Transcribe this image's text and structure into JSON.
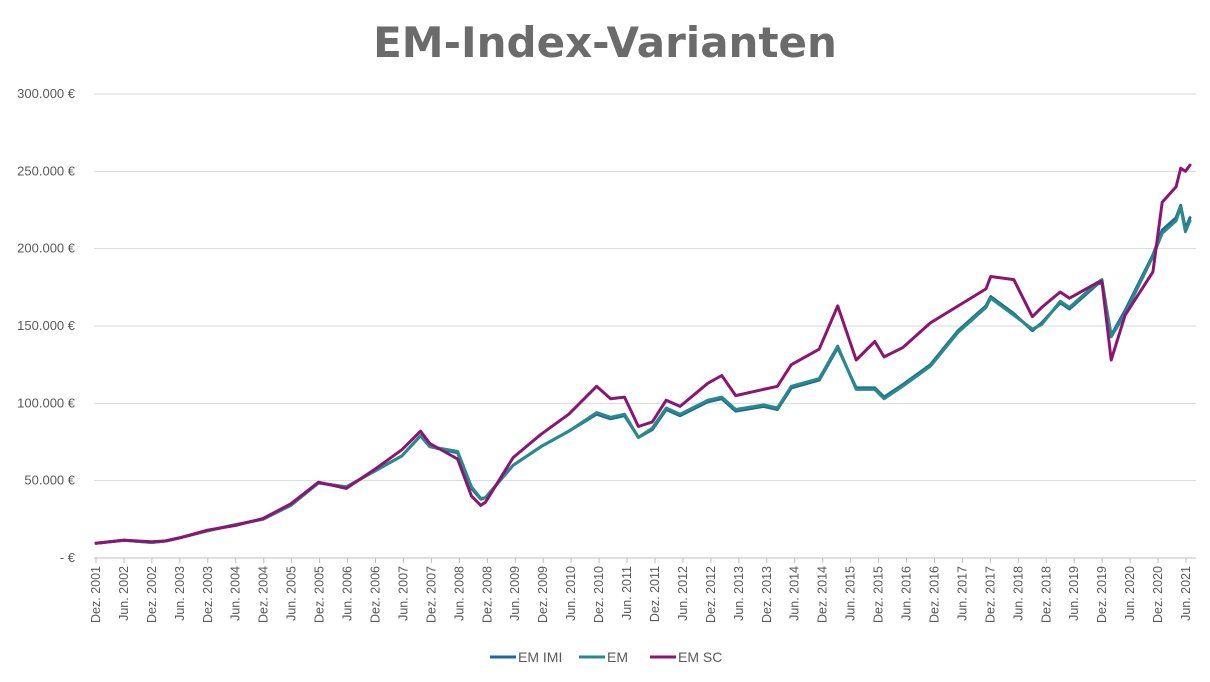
{
  "chart_data": {
    "type": "line",
    "title": "EM-Index-Varianten",
    "xlabel": "",
    "ylabel": "",
    "ylim": [
      0,
      300000
    ],
    "y_ticks": [
      0,
      50000,
      100000,
      150000,
      200000,
      250000,
      300000
    ],
    "y_tick_labels": [
      "- €",
      "50.000 €",
      "100.000 €",
      "150.000 €",
      "200.000 €",
      "250.000 €",
      "300.000 €"
    ],
    "x_tick_labels": [
      "Dez. 2001",
      "Jun. 2002",
      "Dez. 2002",
      "Jun. 2003",
      "Dez. 2003",
      "Jun. 2004",
      "Dez. 2004",
      "Jun. 2005",
      "Dez. 2005",
      "Jun. 2006",
      "Dez. 2006",
      "Jun. 2007",
      "Dez. 2007",
      "Jun. 2008",
      "Dez. 2008",
      "Jun. 2009",
      "Dez. 2009",
      "Jun. 2010",
      "Dez. 2010",
      "Jun. 2011",
      "Dez. 2011",
      "Jun. 2012",
      "Dez. 2012",
      "Jun. 2013",
      "Dez. 2013",
      "Jun. 2014",
      "Dez. 2014",
      "Jun. 2015",
      "Dez. 2015",
      "Jun. 2016",
      "Dez. 2016",
      "Jun. 2017",
      "Dez. 2017",
      "Jun. 2018",
      "Dez. 2018",
      "Jun. 2019",
      "Dez. 2019",
      "Jun. 2020",
      "Dez. 2020",
      "Jun. 2021"
    ],
    "x_start": "2001-12",
    "x_end": "2021-08",
    "grid": true,
    "legend_position": "bottom",
    "series": [
      {
        "name": "EM IMI",
        "color": "#1a6b9a",
        "points": [
          [
            "2001-12",
            9500
          ],
          [
            "2002-06",
            11500
          ],
          [
            "2002-12",
            10000
          ],
          [
            "2003-03",
            11000
          ],
          [
            "2003-06",
            13000
          ],
          [
            "2003-12",
            17500
          ],
          [
            "2004-06",
            21500
          ],
          [
            "2004-12",
            25000
          ],
          [
            "2005-06",
            34000
          ],
          [
            "2005-12",
            48500
          ],
          [
            "2006-06",
            46000
          ],
          [
            "2006-12",
            56000
          ],
          [
            "2007-06",
            66000
          ],
          [
            "2007-10",
            79000
          ],
          [
            "2007-12",
            72000
          ],
          [
            "2008-06",
            68000
          ],
          [
            "2008-09",
            45000
          ],
          [
            "2008-11",
            38000
          ],
          [
            "2008-12",
            39000
          ],
          [
            "2009-06",
            60000
          ],
          [
            "2009-12",
            72000
          ],
          [
            "2010-06",
            82000
          ],
          [
            "2010-12",
            93000
          ],
          [
            "2011-03",
            90000
          ],
          [
            "2011-06",
            92000
          ],
          [
            "2011-09",
            78000
          ],
          [
            "2011-12",
            83000
          ],
          [
            "2012-03",
            96000
          ],
          [
            "2012-06",
            92000
          ],
          [
            "2012-12",
            101000
          ],
          [
            "2013-03",
            103000
          ],
          [
            "2013-06",
            95000
          ],
          [
            "2013-12",
            98000
          ],
          [
            "2014-03",
            96000
          ],
          [
            "2014-06",
            110000
          ],
          [
            "2014-12",
            115000
          ],
          [
            "2015-04",
            136000
          ],
          [
            "2015-08",
            110000
          ],
          [
            "2015-12",
            110000
          ],
          [
            "2016-02",
            104000
          ],
          [
            "2016-06",
            112000
          ],
          [
            "2016-12",
            125000
          ],
          [
            "2017-06",
            147000
          ],
          [
            "2017-12",
            163000
          ],
          [
            "2018-01",
            169000
          ],
          [
            "2018-06",
            158000
          ],
          [
            "2018-10",
            147000
          ],
          [
            "2018-12",
            152000
          ],
          [
            "2019-04",
            165000
          ],
          [
            "2019-06",
            161000
          ],
          [
            "2019-12",
            177000
          ],
          [
            "2020-01",
            178000
          ],
          [
            "2020-03",
            144000
          ],
          [
            "2020-06",
            160000
          ],
          [
            "2020-12",
            196000
          ],
          [
            "2021-02",
            212000
          ],
          [
            "2021-05",
            220000
          ],
          [
            "2021-06",
            228000
          ],
          [
            "2021-07",
            213000
          ],
          [
            "2021-08",
            220000
          ]
        ]
      },
      {
        "name": "EM",
        "color": "#2a8a8a",
        "points": [
          [
            "2001-12",
            9500
          ],
          [
            "2002-06",
            11500
          ],
          [
            "2002-12",
            10000
          ],
          [
            "2003-03",
            11000
          ],
          [
            "2003-06",
            13000
          ],
          [
            "2003-12",
            17500
          ],
          [
            "2004-06",
            21500
          ],
          [
            "2004-12",
            25000
          ],
          [
            "2005-06",
            34000
          ],
          [
            "2005-12",
            48500
          ],
          [
            "2006-06",
            46000
          ],
          [
            "2006-12",
            56000
          ],
          [
            "2007-06",
            66000
          ],
          [
            "2007-10",
            79000
          ],
          [
            "2007-12",
            72000
          ],
          [
            "2008-06",
            69000
          ],
          [
            "2008-09",
            46000
          ],
          [
            "2008-11",
            38500
          ],
          [
            "2008-12",
            39000
          ],
          [
            "2009-06",
            60000
          ],
          [
            "2009-12",
            72000
          ],
          [
            "2010-06",
            82000
          ],
          [
            "2010-12",
            94000
          ],
          [
            "2011-03",
            91000
          ],
          [
            "2011-06",
            93000
          ],
          [
            "2011-09",
            78000
          ],
          [
            "2011-12",
            84000
          ],
          [
            "2012-03",
            97000
          ],
          [
            "2012-06",
            93000
          ],
          [
            "2012-12",
            102000
          ],
          [
            "2013-03",
            104000
          ],
          [
            "2013-06",
            96000
          ],
          [
            "2013-12",
            99000
          ],
          [
            "2014-03",
            97000
          ],
          [
            "2014-06",
            111000
          ],
          [
            "2014-12",
            116000
          ],
          [
            "2015-04",
            137000
          ],
          [
            "2015-08",
            109000
          ],
          [
            "2015-12",
            109000
          ],
          [
            "2016-02",
            103000
          ],
          [
            "2016-06",
            111000
          ],
          [
            "2016-12",
            124000
          ],
          [
            "2017-06",
            146000
          ],
          [
            "2017-12",
            162000
          ],
          [
            "2018-01",
            168000
          ],
          [
            "2018-06",
            157000
          ],
          [
            "2018-10",
            148000
          ],
          [
            "2018-12",
            151000
          ],
          [
            "2019-04",
            166000
          ],
          [
            "2019-06",
            162000
          ],
          [
            "2019-12",
            178000
          ],
          [
            "2020-01",
            180000
          ],
          [
            "2020-03",
            143000
          ],
          [
            "2020-06",
            158000
          ],
          [
            "2020-12",
            195000
          ],
          [
            "2021-02",
            210000
          ],
          [
            "2021-05",
            218000
          ],
          [
            "2021-06",
            227000
          ],
          [
            "2021-07",
            211000
          ],
          [
            "2021-08",
            218000
          ]
        ]
      },
      {
        "name": "EM SC",
        "color": "#8b1570",
        "points": [
          [
            "2001-12",
            9500
          ],
          [
            "2002-06",
            11500
          ],
          [
            "2002-12",
            10500
          ],
          [
            "2003-03",
            11000
          ],
          [
            "2003-06",
            13000
          ],
          [
            "2003-12",
            18000
          ],
          [
            "2004-06",
            21000
          ],
          [
            "2004-12",
            25500
          ],
          [
            "2005-06",
            35000
          ],
          [
            "2005-12",
            49000
          ],
          [
            "2006-06",
            45000
          ],
          [
            "2006-12",
            57000
          ],
          [
            "2007-06",
            70000
          ],
          [
            "2007-10",
            82000
          ],
          [
            "2007-12",
            74000
          ],
          [
            "2008-06",
            64000
          ],
          [
            "2008-09",
            40000
          ],
          [
            "2008-11",
            34000
          ],
          [
            "2008-12",
            36000
          ],
          [
            "2009-06",
            65000
          ],
          [
            "2009-12",
            80000
          ],
          [
            "2010-06",
            93000
          ],
          [
            "2010-12",
            111000
          ],
          [
            "2011-03",
            103000
          ],
          [
            "2011-06",
            104000
          ],
          [
            "2011-09",
            85000
          ],
          [
            "2011-12",
            88000
          ],
          [
            "2012-03",
            102000
          ],
          [
            "2012-06",
            98000
          ],
          [
            "2012-12",
            113000
          ],
          [
            "2013-03",
            118000
          ],
          [
            "2013-06",
            105000
          ],
          [
            "2013-12",
            109000
          ],
          [
            "2014-03",
            111000
          ],
          [
            "2014-06",
            125000
          ],
          [
            "2014-12",
            135000
          ],
          [
            "2015-04",
            163000
          ],
          [
            "2015-08",
            128000
          ],
          [
            "2015-12",
            140000
          ],
          [
            "2016-02",
            130000
          ],
          [
            "2016-06",
            136000
          ],
          [
            "2016-12",
            152000
          ],
          [
            "2017-06",
            163000
          ],
          [
            "2017-12",
            174000
          ],
          [
            "2018-01",
            182000
          ],
          [
            "2018-06",
            180000
          ],
          [
            "2018-10",
            156000
          ],
          [
            "2018-12",
            162000
          ],
          [
            "2019-04",
            172000
          ],
          [
            "2019-06",
            168000
          ],
          [
            "2019-12",
            178000
          ],
          [
            "2020-01",
            179000
          ],
          [
            "2020-03",
            128000
          ],
          [
            "2020-06",
            157000
          ],
          [
            "2020-12",
            185000
          ],
          [
            "2021-02",
            230000
          ],
          [
            "2021-05",
            240000
          ],
          [
            "2021-06",
            252000
          ],
          [
            "2021-07",
            250000
          ],
          [
            "2021-08",
            254000
          ]
        ]
      }
    ]
  }
}
